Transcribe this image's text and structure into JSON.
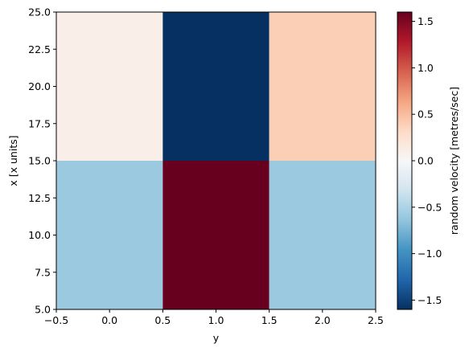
{
  "chart_data": {
    "type": "heatmap",
    "xlabel": "y",
    "ylabel": "x [x units]",
    "x_centers": [
      0,
      1,
      2
    ],
    "y_edges": [
      5,
      15,
      25
    ],
    "xlim": [
      -0.5,
      2.5
    ],
    "ylim": [
      5,
      25
    ],
    "x_ticks": [
      -0.5,
      0.0,
      0.5,
      1.0,
      1.5,
      2.0,
      2.5
    ],
    "x_tick_labels": [
      "−0.5",
      "0.0",
      "0.5",
      "1.0",
      "1.5",
      "2.0",
      "2.5"
    ],
    "y_ticks": [
      5.0,
      7.5,
      10.0,
      12.5,
      15.0,
      17.5,
      20.0,
      22.5,
      25.0
    ],
    "y_tick_labels": [
      "5.0",
      "7.5",
      "10.0",
      "12.5",
      "15.0",
      "17.5",
      "20.0",
      "22.5",
      "25.0"
    ],
    "values": [
      [
        -0.6,
        1.6,
        -0.6
      ],
      [
        0.1,
        -1.6,
        0.4
      ]
    ],
    "colorbar": {
      "label": "random velocity [metres/sec]",
      "vmin": -1.6,
      "vmax": 1.6,
      "ticks": [
        -1.5,
        -1.0,
        -0.5,
        0.0,
        0.5,
        1.0,
        1.5
      ],
      "tick_labels": [
        "−1.5",
        "−1.0",
        "−0.5",
        "0.0",
        "0.5",
        "1.0",
        "1.5"
      ],
      "colormap": "RdBu_r"
    },
    "grid": false
  }
}
